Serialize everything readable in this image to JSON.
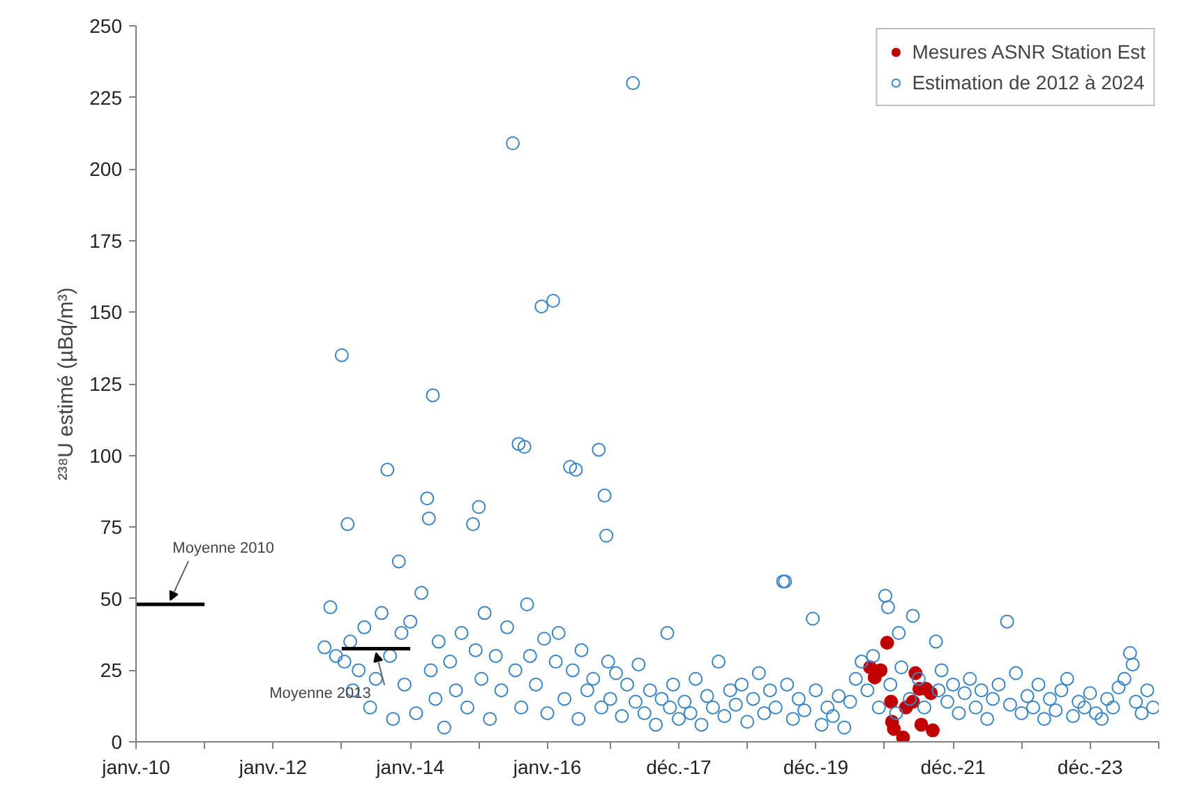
{
  "chart_data": {
    "type": "scatter",
    "ylabel": "²³⁸U estimé (µBq/m³)",
    "xlim": [
      "2010-01-01",
      "2024-12-01"
    ],
    "ylim": [
      0,
      250
    ],
    "yticks": [
      0,
      25,
      50,
      75,
      100,
      125,
      150,
      175,
      200,
      225,
      250
    ],
    "xticks": [
      {
        "value": "2010-01-01",
        "label": "janv.-10"
      },
      {
        "value": "2011-01-01",
        "label": null
      },
      {
        "value": "2012-01-01",
        "label": "janv.-12"
      },
      {
        "value": "2013-01-01",
        "label": null
      },
      {
        "value": "2014-01-01",
        "label": "janv.-14"
      },
      {
        "value": "2015-01-01",
        "label": null
      },
      {
        "value": "2016-01-01",
        "label": "janv.-16"
      },
      {
        "value": "2016-12-01",
        "label": null
      },
      {
        "value": "2017-12-01",
        "label": "déc.-17"
      },
      {
        "value": "2018-12-01",
        "label": null
      },
      {
        "value": "2019-12-01",
        "label": "déc.-19"
      },
      {
        "value": "2020-12-01",
        "label": null
      },
      {
        "value": "2021-12-01",
        "label": "déc.-21"
      },
      {
        "value": "2022-12-01",
        "label": null
      },
      {
        "value": "2023-12-01",
        "label": "déc.-23"
      },
      {
        "value": "2024-12-01",
        "label": null
      }
    ],
    "grid": false,
    "legend": "top right",
    "marker": "circle",
    "series": [
      {
        "name": "Mesures ASNR Station Est",
        "color": "#c00000",
        "x": [
          "2020-09-15",
          "2020-10-10",
          "2020-11-10",
          "2020-12-15",
          "2021-01-05",
          "2021-01-10",
          "2021-01-20",
          "2021-03-10",
          "2021-03-25",
          "2021-05-01",
          "2021-05-15",
          "2021-06-05",
          "2021-06-15",
          "2021-07-10",
          "2021-08-05",
          "2021-08-15"
        ],
        "values": [
          26,
          22.5,
          25,
          34.6,
          14,
          7,
          4.5,
          1.5,
          12,
          14,
          24,
          18.5,
          6,
          18.5,
          17,
          4
        ]
      },
      {
        "name": "Estimation de 2012 à 2024",
        "color": "#3a85c6",
        "x": [
          "2012-10-01",
          "2012-11-01",
          "2012-12-01",
          "2013-01-01",
          "2013-01-15",
          "2013-02-01",
          "2013-02-15",
          "2013-03-01",
          "2013-04-01",
          "2013-05-01",
          "2013-06-01",
          "2013-07-01",
          "2013-08-01",
          "2013-09-01",
          "2013-09-15",
          "2013-10-01",
          "2013-11-01",
          "2013-11-15",
          "2013-12-01",
          "2014-01-01",
          "2014-02-01",
          "2014-03-01",
          "2014-04-01",
          "2014-04-10",
          "2014-04-20",
          "2014-05-01",
          "2014-05-15",
          "2014-06-01",
          "2014-07-01",
          "2014-08-01",
          "2014-09-01",
          "2014-10-01",
          "2014-11-01",
          "2014-12-01",
          "2014-12-15",
          "2015-01-01",
          "2015-01-15",
          "2015-02-01",
          "2015-03-01",
          "2015-04-01",
          "2015-05-01",
          "2015-06-01",
          "2015-07-01",
          "2015-07-15",
          "2015-08-01",
          "2015-08-15",
          "2015-09-01",
          "2015-09-15",
          "2015-10-01",
          "2015-11-01",
          "2015-12-01",
          "2015-12-15",
          "2016-01-01",
          "2016-02-01",
          "2016-02-15",
          "2016-03-01",
          "2016-04-01",
          "2016-05-01",
          "2016-05-15",
          "2016-06-01",
          "2016-06-15",
          "2016-07-01",
          "2016-08-01",
          "2016-09-01",
          "2016-10-01",
          "2016-10-15",
          "2016-11-01",
          "2016-11-10",
          "2016-11-20",
          "2016-12-01",
          "2017-01-01",
          "2017-02-01",
          "2017-03-01",
          "2017-04-01",
          "2017-04-15",
          "2017-05-01",
          "2017-06-01",
          "2017-07-01",
          "2017-08-01",
          "2017-09-01",
          "2017-10-01",
          "2017-10-15",
          "2017-11-01",
          "2017-12-01",
          "2018-01-01",
          "2018-02-01",
          "2018-03-01",
          "2018-04-01",
          "2018-05-01",
          "2018-06-01",
          "2018-07-01",
          "2018-08-01",
          "2018-09-01",
          "2018-10-01",
          "2018-11-01",
          "2018-12-01",
          "2019-01-01",
          "2019-02-01",
          "2019-03-01",
          "2019-04-01",
          "2019-05-01",
          "2019-06-10",
          "2019-06-20",
          "2019-07-01",
          "2019-08-01",
          "2019-09-01",
          "2019-10-01",
          "2019-11-15",
          "2019-12-01",
          "2020-01-01",
          "2020-02-01",
          "2020-03-01",
          "2020-04-01",
          "2020-05-01",
          "2020-06-01",
          "2020-07-01",
          "2020-08-01",
          "2020-09-01",
          "2020-10-01",
          "2020-11-01",
          "2020-12-05",
          "2020-12-20",
          "2021-01-01",
          "2021-02-01",
          "2021-02-15",
          "2021-03-01",
          "2021-04-15",
          "2021-05-01",
          "2021-06-01",
          "2021-07-01",
          "2021-09-01",
          "2021-09-15",
          "2021-10-01",
          "2021-11-01",
          "2021-12-01",
          "2022-01-01",
          "2022-02-01",
          "2022-03-01",
          "2022-04-01",
          "2022-05-01",
          "2022-06-01",
          "2022-07-01",
          "2022-08-01",
          "2022-09-15",
          "2022-10-01",
          "2022-11-01",
          "2022-12-01",
          "2023-01-01",
          "2023-02-01",
          "2023-03-01",
          "2023-04-01",
          "2023-05-01",
          "2023-06-01",
          "2023-07-01",
          "2023-08-01",
          "2023-09-01",
          "2023-10-01",
          "2023-11-01",
          "2023-12-01",
          "2024-01-01",
          "2024-02-01",
          "2024-03-01",
          "2024-04-01",
          "2024-05-01",
          "2024-06-01",
          "2024-07-01",
          "2024-07-15",
          "2024-08-01",
          "2024-09-01",
          "2024-10-01",
          "2024-11-01"
        ],
        "values": [
          33,
          47,
          30,
          135,
          28,
          76,
          35,
          18,
          25,
          40,
          12,
          22,
          45,
          95,
          30,
          8,
          63,
          38,
          20,
          42,
          10,
          52,
          85,
          78,
          25,
          121,
          15,
          35,
          5,
          28,
          18,
          38,
          12,
          76,
          32,
          82,
          22,
          45,
          8,
          30,
          18,
          40,
          209,
          25,
          104,
          12,
          103,
          48,
          30,
          20,
          152,
          36,
          10,
          154,
          28,
          38,
          15,
          96,
          25,
          95,
          8,
          32,
          18,
          22,
          102,
          12,
          86,
          72,
          28,
          15,
          24,
          9,
          20,
          230,
          14,
          27,
          10,
          18,
          6,
          15,
          38,
          12,
          20,
          8,
          14,
          10,
          22,
          6,
          16,
          12,
          28,
          9,
          18,
          13,
          20,
          7,
          15,
          24,
          10,
          18,
          12,
          56,
          56,
          20,
          8,
          15,
          11,
          43,
          18,
          6,
          12,
          9,
          16,
          5,
          14,
          22,
          28,
          18,
          30,
          12,
          51,
          47,
          20,
          10,
          38,
          26,
          15,
          44,
          22,
          12,
          35,
          18,
          25,
          14,
          20,
          10,
          17,
          22,
          12,
          18,
          8,
          15,
          20,
          42,
          13,
          24,
          10,
          16,
          12,
          20,
          8,
          15,
          11,
          18,
          22,
          9,
          14,
          12,
          17,
          10,
          8,
          15,
          12,
          19,
          22,
          31,
          27,
          14,
          10,
          18,
          12
        ]
      },
      {
        "name": "Moyenne 2010",
        "type": "line",
        "marker": "none",
        "color": "#000000",
        "x": [
          "2010-01-01",
          "2011-01-01"
        ],
        "values": [
          48,
          48
        ]
      },
      {
        "name": "Moyenne 2013",
        "type": "line",
        "marker": "none",
        "color": "#000000",
        "x": [
          "2013-01-01",
          "2014-01-01"
        ],
        "values": [
          32.5,
          32.5
        ]
      }
    ]
  }
}
